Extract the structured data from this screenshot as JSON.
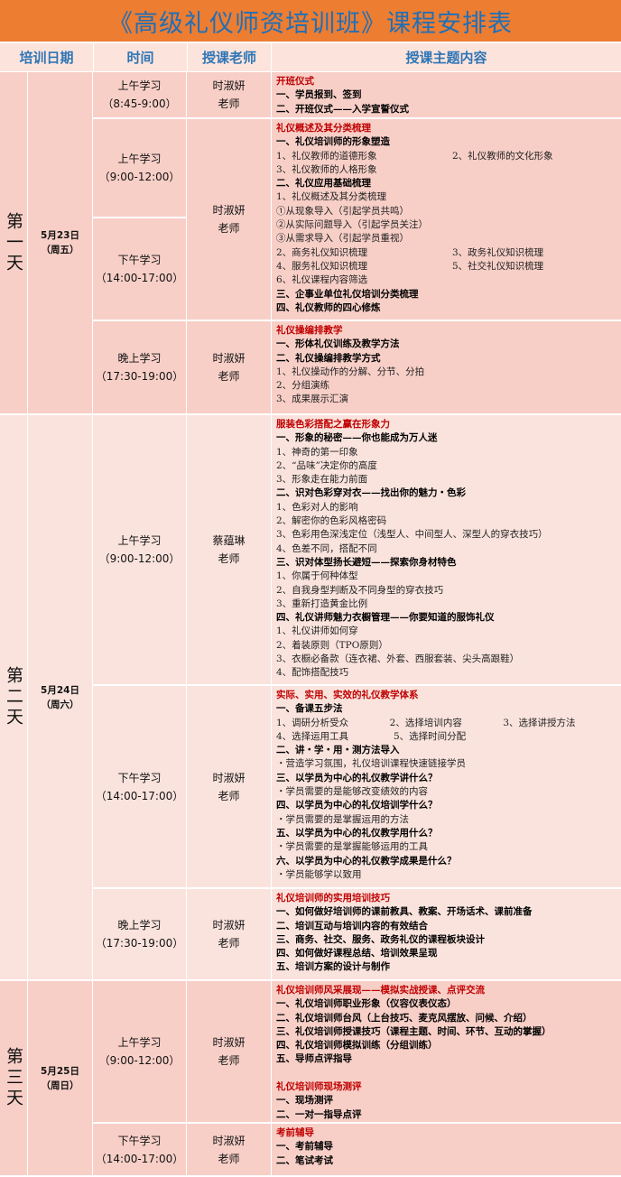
{
  "title": "《高级礼仪师资培训班》课程安排表",
  "headers": [
    "培训日期",
    "时间",
    "授课老师",
    "授课主题内容"
  ],
  "days": [
    {
      "day": "第一天",
      "date": "5月23日",
      "weekday": "（周五）"
    },
    {
      "day": "第二天",
      "date": "5月24日",
      "weekday": "（周六）"
    },
    {
      "day": "第三天",
      "date": "5月25日",
      "weekday": "（周日）"
    }
  ],
  "times": [
    {
      "label": "上午学习",
      "range": "（8:45-9:00）"
    },
    {
      "label": "上午学习",
      "range": "（9:00-12:00）"
    },
    {
      "label": "下午学习",
      "range": "（14:00-17:00）"
    },
    {
      "label": "晚上学习",
      "range": "（17:30-19:00）"
    },
    {
      "label": "上午学习",
      "range": "（9:00-12:00）"
    },
    {
      "label": "下午学习",
      "range": "（14:00-17:00）"
    },
    {
      "label": "晚上学习",
      "range": "（17:30-19:00）"
    },
    {
      "label": "上午学习",
      "range": "（9:00-12:00）"
    },
    {
      "label": "下午学习",
      "range": "（14:00-17:00）"
    }
  ],
  "teachers": [
    {
      "name": "时淑妍",
      "title": "老师"
    },
    {
      "name": "时淑妍",
      "title": "老师"
    },
    {
      "name": "时淑妍",
      "title": "老师"
    },
    {
      "name": "蔡蕴琳",
      "title": "老师"
    },
    {
      "name": "时淑妍",
      "title": "老师"
    },
    {
      "name": "时淑妍",
      "title": "老师"
    },
    {
      "name": "时淑妍",
      "title": "老师"
    },
    {
      "name": "时淑妍",
      "title": "老师"
    }
  ],
  "contents": [
    [
      {
        "s": "title",
        "c": [
          "开班仪式"
        ]
      },
      {
        "s": "bold",
        "c": [
          "一、学员报到、签到"
        ]
      },
      {
        "s": "bold",
        "c": [
          "二、开班仪式——入学宣誓仪式"
        ]
      }
    ],
    [
      {
        "s": "title",
        "c": [
          "礼仪概述及其分类梳理"
        ]
      },
      {
        "s": "bold",
        "c": [
          "一、礼仪培训师的形象塑造"
        ]
      },
      {
        "s": "n",
        "c": [
          "1、礼仪教师的道德形象",
          "2、礼仪教师的文化形象"
        ]
      },
      {
        "s": "n",
        "c": [
          "3、礼仪教师的人格形象"
        ]
      },
      {
        "s": "bold",
        "c": [
          "二、礼仪应用基础梳理"
        ]
      },
      {
        "s": "n",
        "c": [
          "1、礼仪概述及其分类梳理"
        ]
      },
      {
        "s": "n",
        "c": [
          "①从现象导入（引起学员共鸣）"
        ]
      },
      {
        "s": "n",
        "c": [
          "②从实际问题导入（引起学员关注）"
        ]
      },
      {
        "s": "n",
        "c": [
          "③从需求导入（引起学员重视）"
        ]
      },
      {
        "s": "n",
        "c": [
          "2、商务礼仪知识梳理",
          "3、政务礼仪知识梳理"
        ]
      },
      {
        "s": "n",
        "c": [
          "4、服务礼仪知识梳理",
          "5、社交礼仪知识梳理"
        ]
      },
      {
        "s": "n",
        "c": [
          "6、礼仪课程内容筛选"
        ]
      },
      {
        "s": "bold",
        "c": [
          "三、企事业单位礼仪培训分类梳理"
        ]
      },
      {
        "s": "bold",
        "c": [
          "四、礼仪教师的四心修炼"
        ]
      }
    ],
    [
      {
        "s": "title",
        "c": [
          "礼仪操编排教学"
        ]
      },
      {
        "s": "bold",
        "c": [
          "一、形体礼仪训练及教学方法"
        ]
      },
      {
        "s": "bold",
        "c": [
          "二、礼仪操编排教学方式"
        ]
      },
      {
        "s": "n",
        "c": [
          "1、礼仪操动作的分解、分节、分拍"
        ]
      },
      {
        "s": "n",
        "c": [
          "2、分组演练"
        ]
      },
      {
        "s": "n",
        "c": [
          "3、成果展示汇演"
        ]
      }
    ],
    [
      {
        "s": "title",
        "c": [
          "服装色彩搭配之赢在形象力"
        ]
      },
      {
        "s": "bold",
        "c": [
          "一、形象的秘密——你也能成为万人迷"
        ]
      },
      {
        "s": "n",
        "c": [
          "1、神奇的第一印象"
        ]
      },
      {
        "s": "n",
        "c": [
          "2、“品味”决定你的高度"
        ]
      },
      {
        "s": "n",
        "c": [
          "3、形象走在能力前面"
        ]
      },
      {
        "s": "bold",
        "c": [
          "二、识对色彩穿对衣——找出你的魅力・色彩"
        ]
      },
      {
        "s": "n",
        "c": [
          "1、色彩对人的影响"
        ]
      },
      {
        "s": "n",
        "c": [
          "2、解密你的色彩风格密码"
        ]
      },
      {
        "s": "n",
        "c": [
          "3、色彩用色深浅定位（浅型人、中间型人、深型人的穿衣技巧）"
        ]
      },
      {
        "s": "n",
        "c": [
          "4、色差不同，搭配不同"
        ]
      },
      {
        "s": "bold",
        "c": [
          "三、识对体型扬长避短——探索你身材特色"
        ]
      },
      {
        "s": "n",
        "c": [
          "1、你属于何种体型"
        ]
      },
      {
        "s": "n",
        "c": [
          "2、自我身型判断及不同身型的穿衣技巧"
        ]
      },
      {
        "s": "n",
        "c": [
          "3、重新打造黄金比例"
        ]
      },
      {
        "s": "bold",
        "c": [
          "四、礼仪讲师魅力衣橱管理——你要知道的服饰礼仪"
        ]
      },
      {
        "s": "n",
        "c": [
          "1、礼仪讲师如何穿"
        ]
      },
      {
        "s": "n",
        "c": [
          "2、着装原则（TPO原则）"
        ]
      },
      {
        "s": "n",
        "c": [
          "3、衣橱必备款（连衣裙、外套、西服套装、尖头高跟鞋）"
        ]
      },
      {
        "s": "n",
        "c": [
          "4、配饰搭配技巧"
        ]
      }
    ],
    [
      {
        "s": "title",
        "c": [
          "实际、实用、实效的礼仪教学体系"
        ]
      },
      {
        "s": "bold",
        "c": [
          "一、备课五步法"
        ]
      },
      {
        "s": "n3",
        "c": [
          "1、调研分析受众",
          "2、选择培训内容",
          "3、选择讲授方法"
        ]
      },
      {
        "s": "n3",
        "c": [
          "4、选择运用工具",
          "5、选择时间分配"
        ]
      },
      {
        "s": "bold",
        "c": [
          "二、讲・学・用・测方法导入"
        ]
      },
      {
        "s": "n",
        "c": [
          "・营造学习氛围，礼仪培训课程快速链接学员"
        ]
      },
      {
        "s": "bold",
        "c": [
          "三、以学员为中心的礼仪教学讲什么？"
        ]
      },
      {
        "s": "n",
        "c": [
          "・学员需要的是能够改变绩效的内容"
        ]
      },
      {
        "s": "bold",
        "c": [
          "四、以学员为中心的礼仪培训学什么？"
        ]
      },
      {
        "s": "n",
        "c": [
          "・学员需要的是掌握运用的方法"
        ]
      },
      {
        "s": "bold",
        "c": [
          "五、以学员为中心的礼仪教学用什么？"
        ]
      },
      {
        "s": "n",
        "c": [
          "・学员需要的是掌握能够运用的工具"
        ]
      },
      {
        "s": "bold",
        "c": [
          "六、以学员为中心的礼仪教学成果是什么？"
        ]
      },
      {
        "s": "n",
        "c": [
          "・学员能够学以致用"
        ]
      }
    ],
    [
      {
        "s": "title",
        "c": [
          "礼仪培训师的实用培训技巧"
        ]
      },
      {
        "s": "bold",
        "c": [
          "一、如何做好培训师的课前教具、教案、开场话术、课前准备"
        ]
      },
      {
        "s": "bold",
        "c": [
          "二、培训互动与培训内容的有效结合"
        ]
      },
      {
        "s": "bold",
        "c": [
          "三、商务、社交、服务、政务礼仪的课程板块设计"
        ]
      },
      {
        "s": "bold",
        "c": [
          "四、如何做好课程总结、培训效果呈现"
        ]
      },
      {
        "s": "bold",
        "c": [
          "五、培训方案的设计与制作"
        ]
      }
    ],
    [
      {
        "s": "title",
        "c": [
          "礼仪培训师风采展现——模拟实战授课、点评交流"
        ]
      },
      {
        "s": "bold",
        "c": [
          "一、礼仪培训师职业形象（仪容仪表仪态）"
        ]
      },
      {
        "s": "bold",
        "c": [
          "二、礼仪培训师台风（上台技巧、麦克风摆放、问候、介绍）"
        ]
      },
      {
        "s": "bold",
        "c": [
          "三、礼仪培训师授课技巧（课程主题、时间、环节、互动的掌握）"
        ]
      },
      {
        "s": "bold",
        "c": [
          "四、礼仪培训师模拟训练（分组训练）"
        ]
      },
      {
        "s": "bold",
        "c": [
          "五、导师点评指导"
        ]
      },
      {
        "s": "gap",
        "c": [
          ""
        ]
      },
      {
        "s": "title",
        "c": [
          "礼仪培训师现场测评"
        ]
      },
      {
        "s": "bold",
        "c": [
          "一、现场测评"
        ]
      },
      {
        "s": "bold",
        "c": [
          "二、一对一指导点评"
        ]
      }
    ],
    [
      {
        "s": "title",
        "c": [
          "考前辅导"
        ]
      },
      {
        "s": "bold",
        "c": [
          "一、考前辅导"
        ]
      },
      {
        "s": "bold",
        "c": [
          "二、笔试考试"
        ]
      }
    ]
  ],
  "colors": {
    "title_bg": "#ed7d31",
    "title_text": "#1f6fb8",
    "header_bg": "#fce4dc",
    "header_text": "#2e75b6",
    "row_dark": "#f7cfc7",
    "row_light": "#fae3dd",
    "topic_red": "#c00000"
  }
}
